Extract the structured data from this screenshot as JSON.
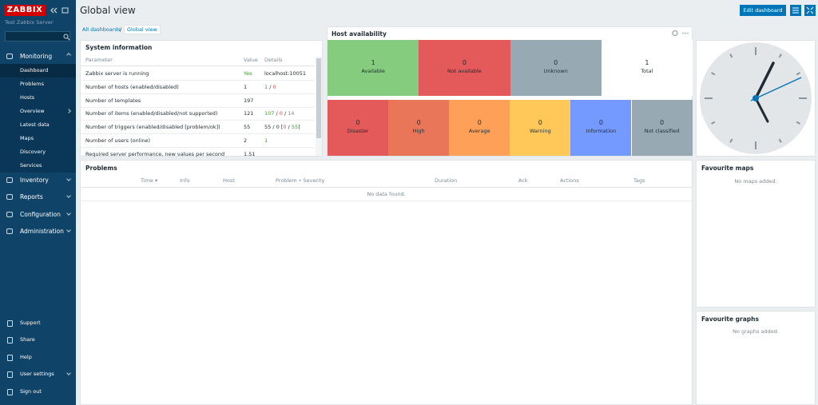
{
  "sidebar": {
    "logo": "ZABBIX",
    "server": "Test Zabbix Server",
    "menu": [
      {
        "label": "Monitoring",
        "items": [
          "Dashboard",
          "Problems",
          "Hosts",
          "Overview",
          "Latest data",
          "Maps",
          "Discovery",
          "Services"
        ]
      },
      {
        "label": "Inventory"
      },
      {
        "label": "Reports"
      },
      {
        "label": "Configuration"
      },
      {
        "label": "Administration"
      }
    ],
    "footer": [
      "Support",
      "Share",
      "Help",
      "User settings",
      "Sign out"
    ]
  },
  "header": {
    "title": "Global view",
    "edit_button": "Edit dashboard"
  },
  "breadcrumbs": [
    "All dashboards",
    "Global view"
  ],
  "system_information": {
    "title": "System information",
    "columns": [
      "Parameter",
      "Value",
      "Details"
    ],
    "rows": [
      {
        "parameter": "Zabbix server is running",
        "value": "Yes",
        "value_color": "green",
        "details": [
          {
            "text": "localhost:10051"
          }
        ]
      },
      {
        "parameter": "Number of hosts (enabled/disabled)",
        "value": "1",
        "details": [
          {
            "text": "1",
            "color": "green"
          },
          {
            "text": " / "
          },
          {
            "text": "0",
            "color": "red"
          }
        ]
      },
      {
        "parameter": "Number of templates",
        "value": "197",
        "details": []
      },
      {
        "parameter": "Number of items (enabled/disabled/not supported)",
        "value": "121",
        "details": [
          {
            "text": "107",
            "color": "green"
          },
          {
            "text": " / "
          },
          {
            "text": "0",
            "color": "red"
          },
          {
            "text": " / "
          },
          {
            "text": "14",
            "color": "gray"
          }
        ]
      },
      {
        "parameter": "Number of triggers (enabled/disabled [problem/ok])",
        "value": "55",
        "details": [
          {
            "text": "55 / 0 ["
          },
          {
            "text": "0",
            "color": "red"
          },
          {
            "text": " / "
          },
          {
            "text": "55",
            "color": "green"
          },
          {
            "text": "]"
          }
        ]
      },
      {
        "parameter": "Number of users (online)",
        "value": "2",
        "details": [
          {
            "text": "1",
            "color": "green"
          }
        ]
      },
      {
        "parameter": "Required server performance, new values per second",
        "value": "1.51",
        "details": []
      }
    ]
  },
  "host_availability": {
    "title": "Host availability",
    "hosts": [
      {
        "count": 1,
        "label": "Available",
        "color": "#86cc7f"
      },
      {
        "count": 0,
        "label": "Not available",
        "color": "#e45959"
      },
      {
        "count": 0,
        "label": "Unknown",
        "color": "#97aab3"
      },
      {
        "count": 1,
        "label": "Total",
        "color": "#ffffff"
      }
    ],
    "severities": [
      {
        "count": 0,
        "label": "Disaster",
        "color": "#e45959"
      },
      {
        "count": 0,
        "label": "High",
        "color": "#e97659"
      },
      {
        "count": 0,
        "label": "Average",
        "color": "#ffa059"
      },
      {
        "count": 0,
        "label": "Warning",
        "color": "#ffc859"
      },
      {
        "count": 0,
        "label": "Information",
        "color": "#7499ff"
      },
      {
        "count": 0,
        "label": "Not classified",
        "color": "#97aab3"
      }
    ]
  },
  "problems": {
    "title": "Problems",
    "columns": [
      "Time ▾",
      "Info",
      "Host",
      "Problem • Severity",
      "Duration",
      "Ack",
      "Actions",
      "Tags"
    ],
    "empty": "No data found."
  },
  "favourite_maps": {
    "title": "Favourite maps",
    "empty": "No maps added."
  },
  "favourite_graphs": {
    "title": "Favourite graphs",
    "empty": "No graphs added."
  }
}
